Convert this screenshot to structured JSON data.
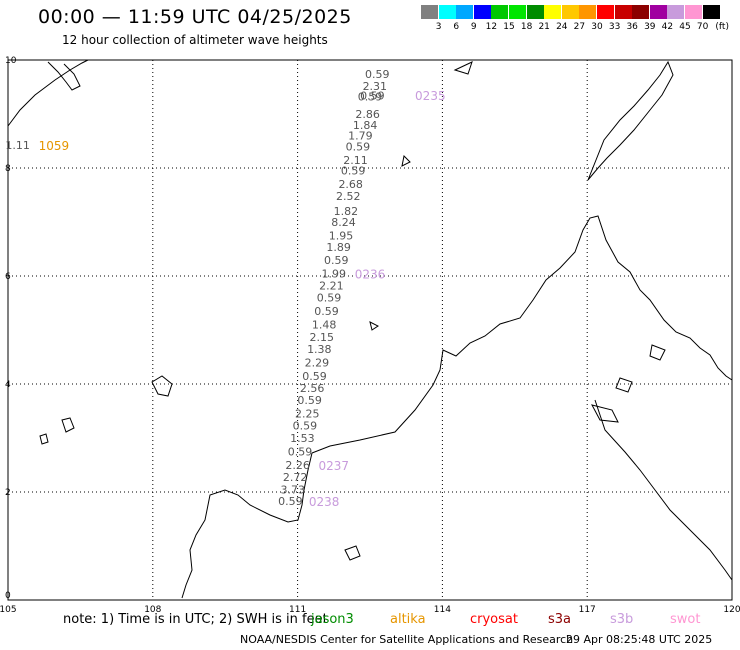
{
  "header": {
    "title": "00:00 — 11:59 UTC 04/25/2025",
    "subtitle": "12 hour collection of altimeter wave heights"
  },
  "colorbar": {
    "unit": "(ft)",
    "colors": [
      "#808080",
      "#00ffff",
      "#00a8ff",
      "#0000ff",
      "#00c800",
      "#00e600",
      "#008c00",
      "#ffff00",
      "#ffc800",
      "#ff9600",
      "#ff0000",
      "#c80000",
      "#8c0000",
      "#a000a0",
      "#c89bdc",
      "#ff96d2",
      "#000000"
    ],
    "labels": [
      "3",
      "6",
      "9",
      "12",
      "15",
      "18",
      "21",
      "24",
      "27",
      "30",
      "33",
      "36",
      "39",
      "42",
      "45",
      "70"
    ]
  },
  "axes": {
    "x_ticks": [
      "105",
      "108",
      "111",
      "114",
      "117",
      "120"
    ],
    "y_ticks": [
      "0",
      "2",
      "4",
      "6",
      "8",
      "10"
    ]
  },
  "observations": [
    {
      "value": "0.59",
      "lon": 112.65,
      "lat": 9.74
    },
    {
      "value": "2.31",
      "lon": 112.6,
      "lat": 9.52
    },
    {
      "value": "0.59",
      "lon": 112.55,
      "lat": 9.34
    },
    {
      "value": "0.59",
      "lon": 112.5,
      "lat": 9.32
    },
    {
      "value": "2.86",
      "lon": 112.45,
      "lat": 9.0
    },
    {
      "value": "1.84",
      "lon": 112.4,
      "lat": 8.8
    },
    {
      "value": "1.79",
      "lon": 112.3,
      "lat": 8.6
    },
    {
      "value": "0.59",
      "lon": 112.25,
      "lat": 8.4
    },
    {
      "value": "2.11",
      "lon": 112.2,
      "lat": 8.15
    },
    {
      "value": "0.59",
      "lon": 112.15,
      "lat": 7.95
    },
    {
      "value": "2.68",
      "lon": 112.1,
      "lat": 7.7
    },
    {
      "value": "2.52",
      "lon": 112.05,
      "lat": 7.48
    },
    {
      "value": "1.82",
      "lon": 112.0,
      "lat": 7.2
    },
    {
      "value": "8.24",
      "lon": 111.95,
      "lat": 7.0,
      "color": "#00a8ff"
    },
    {
      "value": "1.95",
      "lon": 111.9,
      "lat": 6.75
    },
    {
      "value": "1.89",
      "lon": 111.85,
      "lat": 6.54
    },
    {
      "value": "0.59",
      "lon": 111.8,
      "lat": 6.3
    },
    {
      "value": "1.99",
      "lon": 111.75,
      "lat": 6.05
    },
    {
      "value": "2.21",
      "lon": 111.7,
      "lat": 5.82
    },
    {
      "value": "0.59",
      "lon": 111.65,
      "lat": 5.6
    },
    {
      "value": "0.59",
      "lon": 111.6,
      "lat": 5.35
    },
    {
      "value": "1.48",
      "lon": 111.55,
      "lat": 5.1
    },
    {
      "value": "2.15",
      "lon": 111.5,
      "lat": 4.87
    },
    {
      "value": "1.38",
      "lon": 111.45,
      "lat": 4.65
    },
    {
      "value": "2.29",
      "lon": 111.4,
      "lat": 4.4
    },
    {
      "value": "0.59",
      "lon": 111.35,
      "lat": 4.15
    },
    {
      "value": "2.56",
      "lon": 111.3,
      "lat": 3.93
    },
    {
      "value": "0.59",
      "lon": 111.25,
      "lat": 3.7
    },
    {
      "value": "2.25",
      "lon": 111.2,
      "lat": 3.45
    },
    {
      "value": "0.59",
      "lon": 111.15,
      "lat": 3.23
    },
    {
      "value": "1.53",
      "lon": 111.1,
      "lat": 3.0
    },
    {
      "value": "0.59",
      "lon": 111.05,
      "lat": 2.75
    },
    {
      "value": "2.26",
      "lon": 111.0,
      "lat": 2.5
    },
    {
      "value": "2.72",
      "lon": 110.95,
      "lat": 2.28
    },
    {
      "value": "3.73",
      "lon": 110.9,
      "lat": 2.05,
      "color": "#00a8ff"
    },
    {
      "value": "0.59",
      "lon": 110.85,
      "lat": 1.83
    },
    {
      "value": "1.11",
      "lon": 105.2,
      "lat": 8.43
    }
  ],
  "passes": [
    {
      "id": "0235",
      "lon": 113.75,
      "lat": 9.35,
      "color": "#c89bdc"
    },
    {
      "id": "0236",
      "lon": 112.5,
      "lat": 6.05,
      "color": "#c89bdc"
    },
    {
      "id": "0237",
      "lon": 111.75,
      "lat": 2.5,
      "color": "#c89bdc"
    },
    {
      "id": "0238",
      "lon": 111.55,
      "lat": 1.83,
      "color": "#c89bdc"
    },
    {
      "id": "1059",
      "lon": 105.95,
      "lat": 8.43,
      "color": "#e69600"
    }
  ],
  "footer": {
    "note": "note: 1) Time is in UTC; 2) SWH is in feet",
    "satellites": [
      {
        "name": "jason3",
        "color": "#008c00"
      },
      {
        "name": "altika",
        "color": "#e69600"
      },
      {
        "name": "cryosat",
        "color": "#ff0000"
      },
      {
        "name": "s3a",
        "color": "#8c0000"
      },
      {
        "name": "s3b",
        "color": "#c89bdc"
      },
      {
        "name": "swot",
        "color": "#ff96d2"
      }
    ],
    "credit": "NOAA/NESDIS Center for Satellite Applications and Research",
    "timestamp": "29 Apr 08:25:48 UTC 2025"
  }
}
